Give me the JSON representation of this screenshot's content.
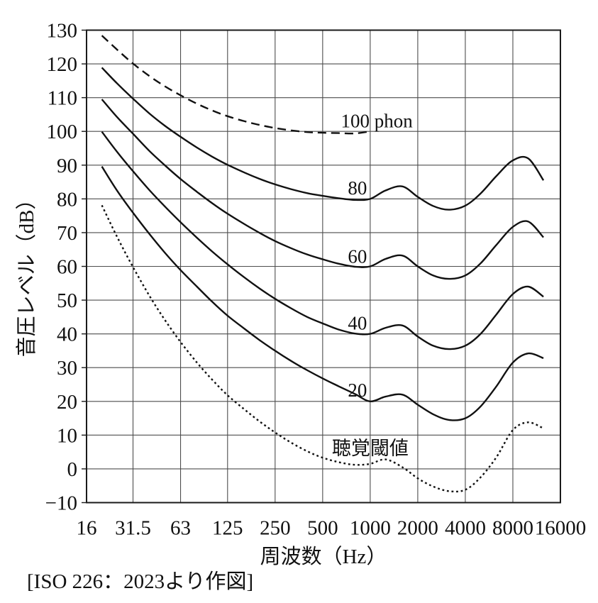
{
  "figure": {
    "caption": "[ISO 226：2023より作図]"
  },
  "chart_data": {
    "type": "line",
    "title": "",
    "xlabel": "周波数（Hz）",
    "ylabel": "音圧レベル（dB）",
    "x_scale": "log",
    "xlim": [
      16,
      16000
    ],
    "ylim": [
      -10,
      130
    ],
    "grid": true,
    "legend_position": "inline-labels",
    "colors": {
      "line": "#111111",
      "grid": "#4d4d4d",
      "text": "#111111"
    },
    "x_ticks": {
      "values": [
        16,
        31.5,
        63,
        125,
        250,
        500,
        1000,
        2000,
        4000,
        8000,
        16000
      ],
      "labels": [
        "16",
        "31.5",
        "63",
        "125",
        "250",
        "500",
        "1000",
        "2000",
        "4000",
        "8000",
        "16000"
      ]
    },
    "y_ticks": {
      "values": [
        130,
        120,
        110,
        100,
        90,
        80,
        70,
        60,
        50,
        40,
        30,
        20,
        10,
        0,
        -10
      ],
      "labels": [
        "130",
        "120",
        "110",
        "100",
        "90",
        "80",
        "70",
        "60",
        "50",
        "40",
        "30",
        "20",
        "10",
        "0",
        "−10"
      ]
    },
    "series": [
      {
        "id": "100-phon",
        "name": "100 phon",
        "line_style": "dashed",
        "label": {
          "text": "100 phon",
          "anchor_hz": 1100,
          "anchor_db": 103.2
        },
        "points": [
          [
            20,
            128.4
          ],
          [
            25,
            124.2
          ],
          [
            31.5,
            120.1
          ],
          [
            40,
            116.4
          ],
          [
            50,
            113.4
          ],
          [
            63,
            110.7
          ],
          [
            80,
            108.2
          ],
          [
            100,
            106.2
          ],
          [
            125,
            104.5
          ],
          [
            160,
            103.0
          ],
          [
            200,
            101.9
          ],
          [
            250,
            101.0
          ],
          [
            315,
            100.3
          ],
          [
            400,
            99.8
          ],
          [
            500,
            99.6
          ],
          [
            630,
            99.5
          ],
          [
            800,
            99.4
          ],
          [
            1000,
            100.0
          ]
        ]
      },
      {
        "id": "80-phon",
        "name": "80",
        "line_style": "solid",
        "label": {
          "text": "80",
          "anchor_hz": 830,
          "anchor_db": 83.3
        },
        "points": [
          [
            20,
            118.9
          ],
          [
            25,
            114.2
          ],
          [
            31.5,
            109.7
          ],
          [
            40,
            105.3
          ],
          [
            50,
            101.7
          ],
          [
            63,
            98.4
          ],
          [
            80,
            95.2
          ],
          [
            100,
            92.5
          ],
          [
            125,
            90.1
          ],
          [
            160,
            87.8
          ],
          [
            200,
            85.9
          ],
          [
            250,
            84.3
          ],
          [
            315,
            82.9
          ],
          [
            400,
            81.7
          ],
          [
            500,
            80.9
          ],
          [
            630,
            80.2
          ],
          [
            800,
            79.7
          ],
          [
            1000,
            80.0
          ],
          [
            1250,
            82.5
          ],
          [
            1600,
            83.7
          ],
          [
            2000,
            80.6
          ],
          [
            2500,
            77.9
          ],
          [
            3150,
            76.8
          ],
          [
            4000,
            78.0
          ],
          [
            5000,
            81.6
          ],
          [
            6300,
            86.8
          ],
          [
            8000,
            91.4
          ],
          [
            10000,
            92.0
          ],
          [
            12500,
            85.5
          ]
        ]
      },
      {
        "id": "60-phon",
        "name": "60",
        "line_style": "solid",
        "label": {
          "text": "60",
          "anchor_hz": 830,
          "anchor_db": 63.1
        },
        "points": [
          [
            20,
            109.5
          ],
          [
            25,
            104.2
          ],
          [
            31.5,
            99.3
          ],
          [
            40,
            94.2
          ],
          [
            50,
            90.0
          ],
          [
            63,
            85.9
          ],
          [
            80,
            82.1
          ],
          [
            100,
            78.7
          ],
          [
            125,
            75.6
          ],
          [
            160,
            72.5
          ],
          [
            200,
            69.9
          ],
          [
            250,
            67.5
          ],
          [
            315,
            65.4
          ],
          [
            400,
            63.5
          ],
          [
            500,
            62.1
          ],
          [
            630,
            60.8
          ],
          [
            800,
            59.9
          ],
          [
            1000,
            60.0
          ],
          [
            1250,
            62.2
          ],
          [
            1600,
            63.2
          ],
          [
            2000,
            60.0
          ],
          [
            2500,
            57.3
          ],
          [
            3150,
            56.3
          ],
          [
            4000,
            57.3
          ],
          [
            5000,
            60.9
          ],
          [
            6300,
            66.4
          ],
          [
            8000,
            71.7
          ],
          [
            10000,
            73.3
          ],
          [
            12500,
            68.6
          ]
        ]
      },
      {
        "id": "40-phon",
        "name": "40",
        "line_style": "solid",
        "label": {
          "text": "40",
          "anchor_hz": 830,
          "anchor_db": 43.3
        },
        "points": [
          [
            20,
            99.9
          ],
          [
            25,
            93.9
          ],
          [
            31.5,
            88.2
          ],
          [
            40,
            82.6
          ],
          [
            50,
            77.8
          ],
          [
            63,
            73.1
          ],
          [
            80,
            68.5
          ],
          [
            100,
            64.4
          ],
          [
            125,
            60.6
          ],
          [
            160,
            56.7
          ],
          [
            200,
            53.4
          ],
          [
            250,
            50.4
          ],
          [
            315,
            47.6
          ],
          [
            400,
            45.0
          ],
          [
            500,
            43.1
          ],
          [
            630,
            41.3
          ],
          [
            800,
            40.1
          ],
          [
            1000,
            40.0
          ],
          [
            1250,
            41.8
          ],
          [
            1600,
            42.5
          ],
          [
            2000,
            39.2
          ],
          [
            2500,
            36.5
          ],
          [
            3150,
            35.5
          ],
          [
            4000,
            36.5
          ],
          [
            5000,
            40.0
          ],
          [
            6300,
            45.8
          ],
          [
            8000,
            51.8
          ],
          [
            10000,
            54.0
          ],
          [
            12500,
            51.0
          ]
        ]
      },
      {
        "id": "20-phon",
        "name": "20",
        "line_style": "solid",
        "label": {
          "text": "20",
          "anchor_hz": 830,
          "anchor_db": 23.4
        },
        "points": [
          [
            20,
            89.6
          ],
          [
            25,
            82.4
          ],
          [
            31.5,
            75.9
          ],
          [
            40,
            69.6
          ],
          [
            50,
            64.1
          ],
          [
            63,
            58.9
          ],
          [
            80,
            54.0
          ],
          [
            100,
            49.5
          ],
          [
            125,
            45.4
          ],
          [
            160,
            41.5
          ],
          [
            200,
            38.1
          ],
          [
            250,
            35.0
          ],
          [
            315,
            32.0
          ],
          [
            400,
            29.2
          ],
          [
            500,
            26.8
          ],
          [
            630,
            24.5
          ],
          [
            800,
            22.2
          ],
          [
            1000,
            20.0
          ],
          [
            1250,
            21.4
          ],
          [
            1600,
            22.0
          ],
          [
            2000,
            19.0
          ],
          [
            2500,
            16.2
          ],
          [
            3150,
            14.5
          ],
          [
            4000,
            15.0
          ],
          [
            5000,
            18.5
          ],
          [
            6300,
            24.5
          ],
          [
            8000,
            31.5
          ],
          [
            10000,
            34.2
          ],
          [
            12500,
            32.8
          ]
        ]
      },
      {
        "id": "threshold",
        "name": "聴覚閾値",
        "line_style": "dotted",
        "label": {
          "text": "聴覚閾値",
          "anchor_hz": 1000,
          "anchor_db": 6.2
        },
        "points": [
          [
            20,
            78.1
          ],
          [
            25,
            68.7
          ],
          [
            31.5,
            59.8
          ],
          [
            40,
            51.3
          ],
          [
            50,
            44.2
          ],
          [
            63,
            37.6
          ],
          [
            80,
            31.5
          ],
          [
            100,
            26.4
          ],
          [
            125,
            21.8
          ],
          [
            160,
            17.6
          ],
          [
            200,
            14.0
          ],
          [
            250,
            10.8
          ],
          [
            315,
            7.8
          ],
          [
            400,
            5.2
          ],
          [
            500,
            3.3
          ],
          [
            630,
            2.0
          ],
          [
            800,
            1.2
          ],
          [
            1000,
            1.5
          ],
          [
            1250,
            2.8
          ],
          [
            1600,
            0.5
          ],
          [
            2000,
            -2.8
          ],
          [
            2500,
            -5.2
          ],
          [
            3150,
            -6.6
          ],
          [
            4000,
            -6.2
          ],
          [
            5000,
            -2.5
          ],
          [
            6300,
            3.5
          ],
          [
            8000,
            11.5
          ],
          [
            10000,
            13.8
          ],
          [
            12500,
            12.0
          ]
        ]
      }
    ],
    "source_note": "[ISO 226：2023より作図]"
  }
}
